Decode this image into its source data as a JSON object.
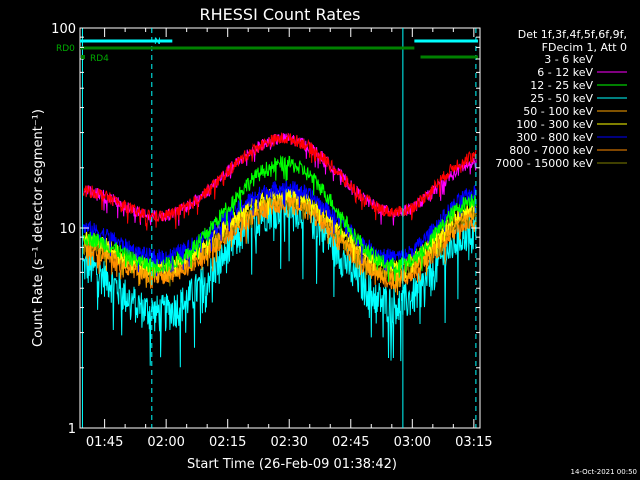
{
  "chart_data": {
    "type": "line",
    "title": "RHESSI Count Rates",
    "xlabel": "Start Time (26-Feb-09 01:38:42)",
    "ylabel": "Count Rate (s⁻¹ detector segment⁻¹)",
    "y_scale": "log",
    "ylim": [
      1,
      100
    ],
    "xlim_minutes": [
      99,
      196.5
    ],
    "x_ticks": [
      {
        "label": "01:45",
        "minute": 105
      },
      {
        "label": "02:00",
        "minute": 120
      },
      {
        "label": "02:15",
        "minute": 135
      },
      {
        "label": "02:30",
        "minute": 150
      },
      {
        "label": "02:45",
        "minute": 165
      },
      {
        "label": "03:00",
        "minute": 180
      },
      {
        "label": "03:15",
        "minute": 195
      }
    ],
    "y_ticks": [
      {
        "label": "1",
        "value": 1
      },
      {
        "label": "10",
        "value": 10
      },
      {
        "label": "100",
        "value": 100
      }
    ],
    "grid": false,
    "legend_position": "right",
    "legend_header": [
      "Det 1f,3f,4f,5f,6f,9f,",
      "FDecim 1, Att 0"
    ],
    "series": [
      {
        "name": "3 - 6 keV",
        "color": "#000000",
        "x": [
          99,
          118,
          149,
          176,
          196
        ],
        "y": [
          15.5,
          11.5,
          28,
          12,
          23
        ]
      },
      {
        "name": "6 - 12 keV",
        "color": "#ff00ff",
        "x": [
          99,
          118,
          149,
          176,
          196
        ],
        "y": [
          15.5,
          11.5,
          28,
          12,
          21
        ]
      },
      {
        "name": "12 - 25 keV",
        "color": "#00ff00",
        "x": [
          99,
          118,
          149,
          176,
          196
        ],
        "y": [
          9,
          6.5,
          21,
          6.5,
          14
        ]
      },
      {
        "name": "25 - 50 keV",
        "color": "#00ffff",
        "x": [
          99,
          118,
          149,
          176,
          196
        ],
        "y": [
          6.5,
          3.8,
          13,
          4.2,
          10
        ]
      },
      {
        "name": "50 - 100 keV",
        "color": "#ffa500",
        "x": [
          99,
          118,
          149,
          176,
          196
        ],
        "y": [
          8.5,
          6,
          14,
          5.8,
          12
        ]
      },
      {
        "name": "100 - 300 keV",
        "color": "#ffff00",
        "x": [
          99,
          118,
          149,
          176,
          196
        ],
        "y": [
          9,
          6.5,
          15,
          6.5,
          13
        ]
      },
      {
        "name": "300 - 800 keV",
        "color": "#0000ff",
        "x": [
          99,
          118,
          149,
          176,
          196
        ],
        "y": [
          10,
          7.2,
          16,
          7.2,
          15
        ]
      },
      {
        "name": "800 - 7000 keV",
        "color": "#ff8c00",
        "x": [
          99,
          118,
          149,
          176,
          196
        ],
        "y": [
          8,
          5.8,
          13,
          5.5,
          11
        ]
      },
      {
        "name": "7000 - 15000 keV",
        "color": "#808000",
        "x": [
          99,
          118,
          149,
          176,
          196
        ],
        "y": [
          8.5,
          6.2,
          14,
          6,
          12
        ]
      }
    ],
    "red_series": {
      "color": "#ff0000",
      "x": [
        99,
        118,
        149,
        176,
        196
      ],
      "y": [
        15.5,
        11.5,
        28,
        12,
        23
      ]
    },
    "flags": [
      {
        "name": "RD0",
        "color": "#008000"
      },
      {
        "name": "RD4",
        "color": "#008000"
      },
      {
        "name": "N",
        "color": "#00ffff"
      }
    ],
    "flag_lines": [
      {
        "row": "N",
        "color": "#00ffff",
        "from": 99,
        "to": 121.5
      },
      {
        "row": "N",
        "color": "#00ffff",
        "from": 180.5,
        "to": 196
      },
      {
        "row": "RD0",
        "color": "#008000",
        "from": 99,
        "to": 180.5
      },
      {
        "row": "RD4",
        "color": "#008000",
        "from": 182,
        "to": 196
      }
    ],
    "vertical_markers": [
      {
        "minute": 99.6,
        "style": "solid",
        "color": "#00ffff"
      },
      {
        "minute": 116.5,
        "style": "dashed",
        "color": "#00ffff"
      },
      {
        "minute": 177.7,
        "style": "solid",
        "color": "#00ffff"
      },
      {
        "minute": 195.5,
        "style": "dashed",
        "color": "#00ffff"
      }
    ]
  },
  "footer": {
    "date_stamp": "14-Oct-2021 00:50"
  }
}
